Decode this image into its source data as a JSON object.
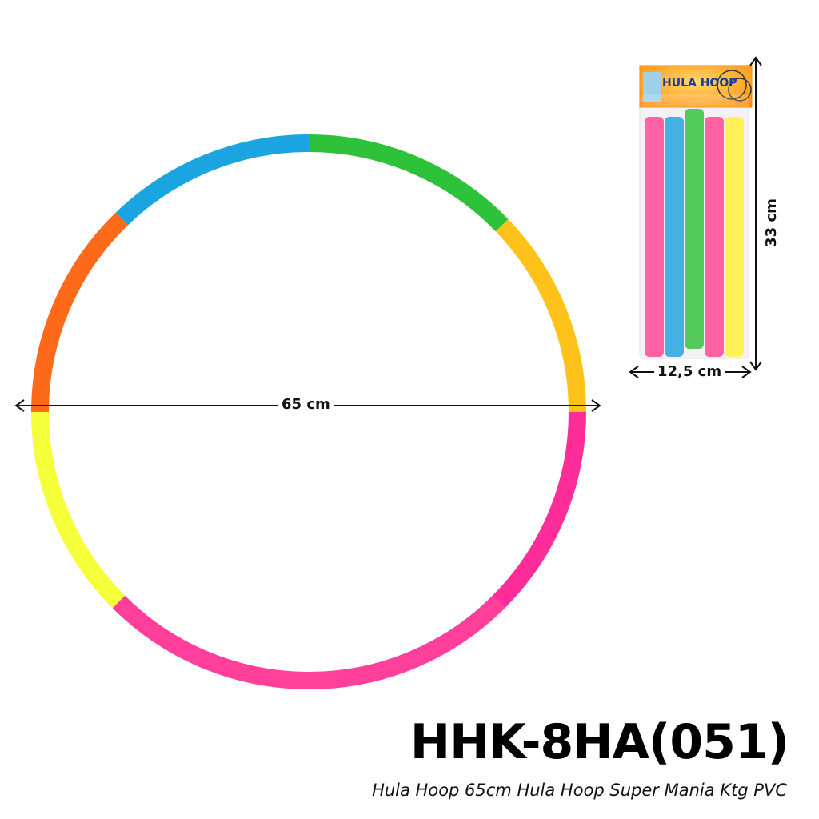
{
  "product": {
    "model_code": "HHK-8HA(051)",
    "description": "Hula Hoop 65cm Hula Hoop Super Mania Ktg PVC",
    "package_label": "HULA HOOP"
  },
  "dimensions": {
    "hoop_diameter": "65 cm",
    "package_height": "33 cm",
    "package_width": "12,5 cm"
  },
  "colors": {
    "hoop_segments": [
      "#1aa5e0",
      "#2ec23a",
      "#ffc21a",
      "#ff2d9a",
      "#ff3f9a",
      "#f5ff3a",
      "#ff6a1a"
    ],
    "package_tubes": [
      "#ff3f8f",
      "#1f9fdc",
      "#2fbf3a",
      "#ff3f8f",
      "#ffee33"
    ]
  }
}
